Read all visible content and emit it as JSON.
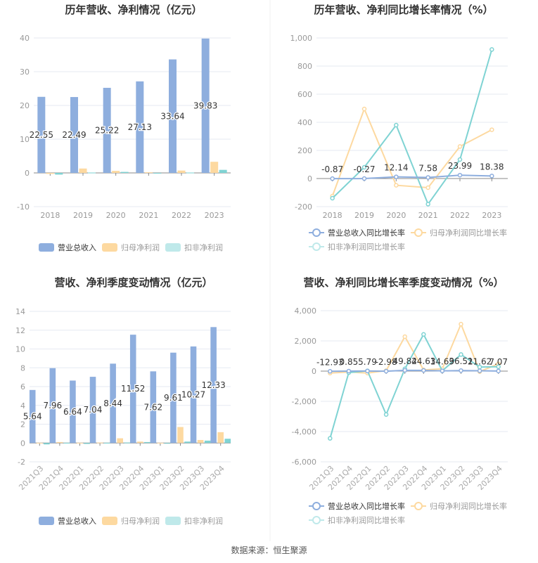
{
  "source": "数据来源：恒生聚源",
  "colors": {
    "revenue": "#8eaede",
    "net": "#fdd9a0",
    "deducted": "#7fd3d3",
    "deducted_legend": "#bfe9ea"
  },
  "chart_data": [
    {
      "type": "bar",
      "title": "历年营收、净利情况（亿元）",
      "categories": [
        "2018",
        "2019",
        "2020",
        "2021",
        "2022",
        "2023"
      ],
      "ylim": [
        -10,
        40
      ],
      "yticks": [
        -10,
        0,
        10,
        20,
        30,
        40
      ],
      "series": [
        {
          "name": "营业总收入",
          "values": [
            22.55,
            22.49,
            25.22,
            27.13,
            33.64,
            39.83
          ],
          "labels": [
            "22.55",
            "22.49",
            "25.22",
            "27.13",
            "33.64",
            "39.83"
          ]
        },
        {
          "name": "归母净利润",
          "values": [
            -0.3,
            1.3,
            0.6,
            0.2,
            0.7,
            3.3
          ]
        },
        {
          "name": "扣非净利润",
          "values": [
            -0.5,
            0.1,
            0.3,
            -0.2,
            0.1,
            0.9
          ]
        }
      ],
      "legend": "bottom",
      "grid": true
    },
    {
      "type": "line",
      "title": "历年营收、净利同比增长率情况（%）",
      "categories": [
        "2018",
        "2019",
        "2020",
        "2021",
        "2022",
        "2023"
      ],
      "ylim": [
        -200,
        1000
      ],
      "yticks": [
        -200,
        0,
        200,
        400,
        600,
        800,
        1000
      ],
      "ytick_labels": [
        "-200",
        "0",
        "200",
        "400",
        "600",
        "800",
        "1,000"
      ],
      "series": [
        {
          "name": "营业总收入同比增长率",
          "values": [
            -0.87,
            -0.27,
            12.14,
            7.58,
            23.99,
            18.38
          ],
          "labels": [
            "-0.87",
            "-0.27",
            "12.14",
            "7.58",
            "23.99",
            "18.38"
          ]
        },
        {
          "name": "归母净利润同比增长率",
          "values": [
            -125,
            495,
            -48,
            -65,
            228,
            347
          ]
        },
        {
          "name": "扣非净利润同比增长率",
          "values": [
            -140,
            80,
            380,
            -182,
            135,
            918
          ]
        }
      ],
      "legend": "bottom",
      "grid": true
    },
    {
      "type": "bar",
      "title": "营收、净利季度变动情况（亿元）",
      "categories": [
        "2021Q3",
        "2021Q4",
        "2022Q1",
        "2022Q2",
        "2022Q3",
        "2022Q4",
        "2023Q1",
        "2023Q2",
        "2023Q3",
        "2023Q4"
      ],
      "ylim": [
        -2,
        14
      ],
      "yticks": [
        -2,
        0,
        2,
        4,
        6,
        8,
        10,
        12,
        14
      ],
      "series": [
        {
          "name": "营业总收入",
          "values": [
            5.64,
            7.96,
            6.64,
            7.04,
            8.44,
            11.52,
            7.62,
            9.61,
            10.27,
            12.33
          ],
          "labels": [
            "5.64",
            "7.96",
            "6.64",
            "7.04",
            "8.44",
            "11.52",
            "7.62",
            "9.61",
            "10.27",
            "12.33"
          ]
        },
        {
          "name": "归母净利润",
          "values": [
            0.02,
            0.1,
            0.02,
            0.05,
            0.5,
            0.15,
            0.02,
            1.7,
            0.32,
            1.15
          ]
        },
        {
          "name": "扣非净利润",
          "values": [
            -0.15,
            0.02,
            -0.1,
            0.02,
            0.05,
            0.1,
            -0.05,
            0.15,
            0.25,
            0.45
          ]
        }
      ],
      "legend": "bottom",
      "grid": true
    },
    {
      "type": "line",
      "title": "营收、净利同比增长率季度变动情况（%）",
      "categories": [
        "2021Q3",
        "2021Q4",
        "2022Q1",
        "2022Q2",
        "2022Q3",
        "2022Q4",
        "2023Q1",
        "2023Q2",
        "2023Q3",
        "2023Q4"
      ],
      "ylim": [
        -6000,
        4000
      ],
      "yticks": [
        -6000,
        -4000,
        -2000,
        0,
        2000,
        4000
      ],
      "ytick_labels": [
        "-6,000",
        "-4,000",
        "-2,000",
        "0",
        "2,000",
        "4,000"
      ],
      "series": [
        {
          "name": "营业总收入同比增长率",
          "values": [
            -12.93,
            0.85,
            5.79,
            -2.98,
            49.82,
            44.63,
            14.69,
            36.51,
            21.62,
            7.07
          ],
          "labels": [
            "-12.93",
            "0.85",
            "5.79",
            "-2.98",
            "49.82",
            "44.63",
            "14.69",
            "36.51",
            "21.62",
            "7.07"
          ]
        },
        {
          "name": "归母净利润同比增长率",
          "values": [
            -130,
            -60,
            -130,
            30,
            2280,
            80,
            150,
            3110,
            -30,
            480
          ]
        },
        {
          "name": "扣非净利润同比增长率",
          "values": [
            -4450,
            -100,
            20,
            -2870,
            150,
            2430,
            20,
            1100,
            270,
            290
          ]
        }
      ],
      "legend": "bottom",
      "grid": true
    }
  ]
}
